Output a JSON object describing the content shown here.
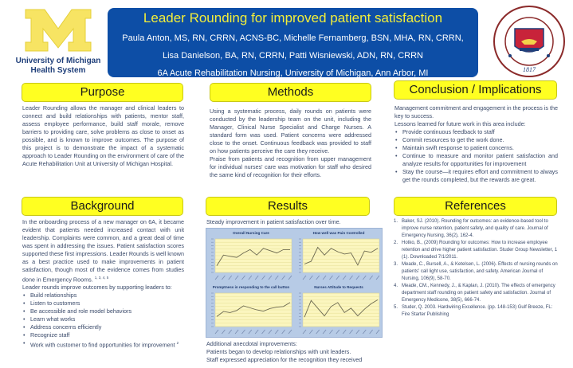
{
  "header": {
    "title": "Leader Rounding for improved patient satisfaction",
    "authors_line1": "Paula Anton, MS, RN, CRRN, ACNS-BC, Michelle Fernamberg, BSN, MHA,  RN, CRRN,",
    "authors_line2": "Lisa Danielson, BA, RN, CRRN,  Patti Wisniewski, ADN, RN, CRRN",
    "affiliation": "6A  Acute Rehabilitation Nursing, University of Michigan,  Ann Arbor, MI",
    "logo_caption_line1": "University of Michigan",
    "logo_caption_line2": "Health System",
    "seal_text_top": "THE UNIVERSITY OF MICHIGAN",
    "seal_year": "1817",
    "colors": {
      "banner": "#0d4ea6",
      "title": "#f2ee3a",
      "section_header": "#ffff21",
      "maize": "#f7e463"
    }
  },
  "purpose": {
    "title": "Purpose",
    "text": "Leader Rounding allows the manager and clinical leaders to connect and build relationships with patients, mentor staff, assess employee performance, build staff morale, remove barriers to providing care, solve problems as close to onset as possible, and is known to improve outcomes.  The purpose of this project is to demonstrate the impact of a systematic approach to Leader Rounding on the environment of care of the Acute Rehabilitation Unit at University of Michigan Hospital."
  },
  "methods": {
    "title": "Methods",
    "paragraph1": "Using a systematic process, daily rounds on patients were conducted by the leadership team on the unit, including the Manager, Clinical Nurse Specialist and Charge Nurses.  A standard form was used.  Patient concerns were addressed close to the onset. Continuous feedback was provided to staff on how patients perceive the care they receive.",
    "paragraph2": "Praise from patients and recognition from upper management for individual nurses' care was motivation for staff who desired the same kind of recognition for their efforts."
  },
  "conclusion": {
    "title": "Conclusion / Implications",
    "intro1": "Management commitment and engagement in the process is the key to success.",
    "intro2": "Lessons learned for future work in this area include:",
    "bullets": [
      "Provide continuous feedback to staff",
      "Commit resources to get the work done.",
      "Maintain swift response to patient concerns.",
      "Continue to measure and monitor patient satisfaction and analyze results for opportunities for improvement",
      "Stay the course—it requires effort and commitment to always get the rounds completed, but the rewards are great."
    ]
  },
  "background": {
    "title": "Background",
    "paragraph1": "In the onboarding process of a new manager  on 6A, it became evident that patients needed increased contact with unit leadership.  Complaints were common, and a great deal of time was spent in addressing the issues.  Patient satisfaction scores supported these first impressions. Leader Rounds is well known as a best practice used to make improvements in patient satisfaction, though most of the evidence comes from studies done in Emergency Rooms.",
    "paragraph1_refs": "1, 3, 4, 5",
    "intro2": "Leader rounds improve outcomes by supporting leaders to:",
    "bullets": [
      "Build relationships",
      "Listen to customers",
      "Be accessible and role model behaviors",
      "Learn what works",
      "Address concerns efficiently",
      "Recognize staff",
      "Work with customer to find opportunities for improvement"
    ],
    "last_bullet_ref": "2"
  },
  "results": {
    "title": "Results",
    "intro": "Steady improvement in patient satisfaction over time.",
    "additional_heading": "Additional anecdotal improvements:",
    "additional_1": "Patients began to develop relationships with unit leaders.",
    "additional_2": "Staff expressed appreciation for the recognition they received"
  },
  "references": {
    "title": "References",
    "items": [
      "Baker, SJ. (2010). Rounding for outcomes: an evidence-based tool to improve nurse retention, patient safety, and quality of care. Journal of Emergency Nursing,  36(2), 162-4.",
      "Hotko,  B., (2009) Rounding for outcomes: How to increase employee retention and drive higher patient satisfaction. Studer Group Newsletter, 1 (1). Downloaded 7/1/2011.",
      "Meade, C., Bursell, A., & Ketelsen, L. (2006). Effects of nursing rounds on patients' call light use, satisfaction, and safety. American Journal of Nursing, 106(9), 58-70.",
      "Meade, CM., Kennedy, J., & Kaplan, J. (2010). The effects of emergency department staff rounding on patient safety and satisfaction. Journal of Emergency Medicone, 38(5), 666-74.",
      "Studer, Q. 2003. Hardwiring Excellence. (pp. 148-153) Gulf Breeze, FL: Fire Starter Publishing"
    ]
  },
  "chart_data": [
    {
      "type": "line",
      "title": "Overall Nursing Care",
      "x": [
        1,
        2,
        3,
        4,
        5,
        6,
        7,
        8,
        9,
        10,
        11,
        12
      ],
      "values": [
        20,
        52,
        48,
        45,
        58,
        68,
        52,
        72,
        65,
        58,
        68,
        68
      ],
      "ylim": [
        0,
        100
      ],
      "grid": true,
      "note": "x-axis tick labels (dates) illegible; values are relative estimates"
    },
    {
      "type": "line",
      "title": "How well was Pain Controlled",
      "x": [
        1,
        2,
        3,
        4,
        5,
        6,
        7,
        8,
        9,
        10,
        11,
        12
      ],
      "values": [
        25,
        33,
        75,
        52,
        72,
        62,
        55,
        58,
        22,
        64,
        60,
        72
      ],
      "ylim": [
        0,
        100
      ],
      "grid": true,
      "note": "x-axis tick labels (dates) illegible; values are relative estimates"
    },
    {
      "type": "line",
      "title": "Promptness in responding to the call button",
      "x": [
        1,
        2,
        3,
        4,
        5,
        6,
        7,
        8,
        9,
        10,
        11,
        12
      ],
      "values": [
        30,
        45,
        42,
        48,
        62,
        56,
        50,
        46,
        54,
        58,
        60,
        72
      ],
      "ylim": [
        0,
        100
      ],
      "grid": true,
      "note": "x-axis tick labels (dates) illegible; values are relative estimates"
    },
    {
      "type": "line",
      "title": "Nurses Attitude to Requests",
      "x": [
        1,
        2,
        3,
        4,
        5,
        6,
        7,
        8,
        9,
        10,
        11,
        12
      ],
      "values": [
        28,
        78,
        55,
        32,
        60,
        72,
        42,
        55,
        32,
        52,
        68,
        80
      ],
      "ylim": [
        0,
        100
      ],
      "grid": true,
      "note": "x-axis tick labels (dates) illegible; values are relative estimates"
    }
  ]
}
